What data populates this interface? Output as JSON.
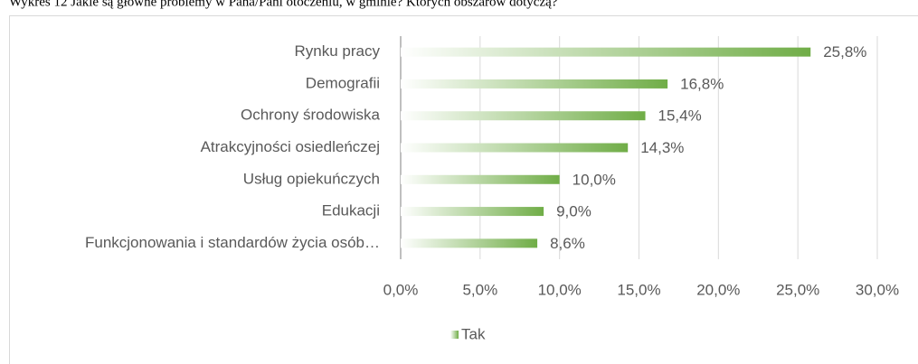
{
  "chart_data": {
    "type": "barh",
    "title": "Wykres 12 Jakie są główne problemy w Pana/Pani otoczeniu, w gminie? Których obszarów dotyczą?",
    "categories": [
      "Rynku pracy",
      "Demografii",
      "Ochrony środowiska",
      "Atrakcyjności osiedleńczej",
      "Usług opiekuńczych",
      "Edukacji",
      "Funkcjonowania i standardów życia osób…"
    ],
    "series": [
      {
        "name": "Tak",
        "color": "#70ad47",
        "values": [
          25.8,
          16.8,
          15.4,
          14.3,
          10.0,
          9.0,
          8.6
        ],
        "value_labels": [
          "25,8%",
          "16,8%",
          "15,4%",
          "14,3%",
          "10,0%",
          "9,0%",
          "8,6%"
        ]
      }
    ],
    "xlim": [
      0,
      30
    ],
    "xticks": [
      {
        "value": 0,
        "label": "0,0%"
      },
      {
        "value": 5,
        "label": "5,0%"
      },
      {
        "value": 10,
        "label": "10,0%"
      },
      {
        "value": 15,
        "label": "15,0%"
      },
      {
        "value": 20,
        "label": "20,0%"
      },
      {
        "value": 25,
        "label": "25,0%"
      },
      {
        "value": 30,
        "label": "30,0%"
      }
    ],
    "grid": true,
    "legend": "bottom"
  }
}
